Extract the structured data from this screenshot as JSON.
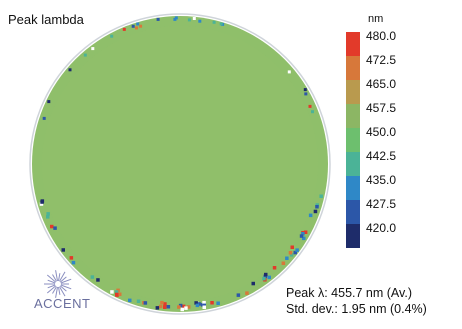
{
  "chart_data": {
    "type": "heatmap",
    "title": "Peak lambda",
    "colorbar": {
      "unit": "nm",
      "range": [
        420.0,
        480.0
      ],
      "ticks": [
        "480.0",
        "472.5",
        "465.0",
        "457.5",
        "450.0",
        "442.5",
        "435.0",
        "427.5",
        "420.0"
      ],
      "colors": [
        "#e23a2a",
        "#d7783a",
        "#b99a4e",
        "#8cb664",
        "#6dbf6e",
        "#4bb397",
        "#2f88c7",
        "#2c57a8",
        "#1e2c6a"
      ]
    },
    "map_description": "circular wafer map, uniform peak wavelength near average",
    "average_peak_nm": 455.7,
    "std_dev_nm": 1.95,
    "std_dev_percent": 0.4,
    "fill_color": "#8fbf6a",
    "stats_lines": {
      "peak_label": "Peak λ:",
      "peak_value": " 455.7 nm (Av.)",
      "std_label": "Std. dev.:",
      "std_value": " 1.95 nm (0.4%)"
    }
  },
  "logo": {
    "text": "ACCENT"
  }
}
